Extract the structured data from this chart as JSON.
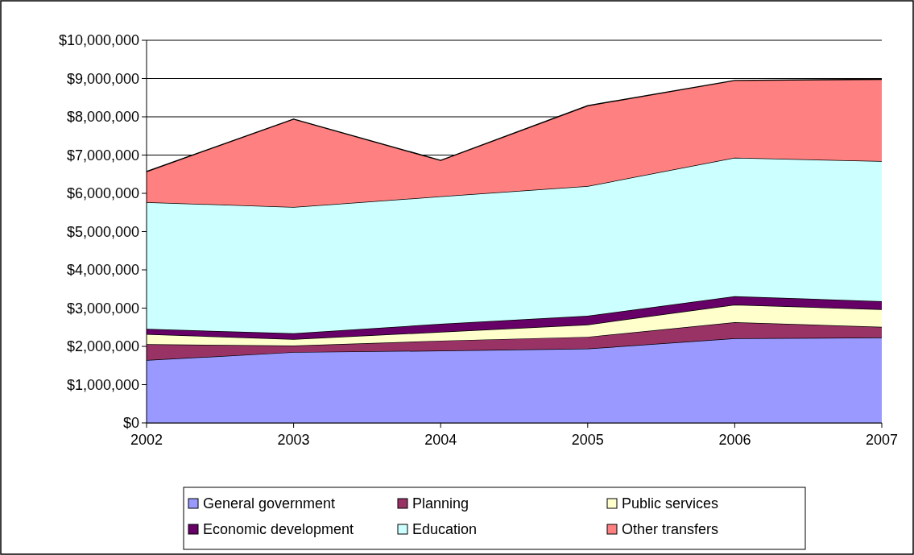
{
  "chart_data": {
    "type": "area",
    "stacked": true,
    "categories": [
      "2002",
      "2003",
      "2004",
      "2005",
      "2006",
      "2007"
    ],
    "series": [
      {
        "name": "General government",
        "color": "#9999ff",
        "values": [
          1640000,
          1850000,
          1890000,
          1940000,
          2210000,
          2230000
        ]
      },
      {
        "name": "Planning",
        "color": "#993366",
        "values": [
          420000,
          170000,
          260000,
          310000,
          420000,
          280000
        ]
      },
      {
        "name": "Public services",
        "color": "#ffffcc",
        "values": [
          260000,
          170000,
          230000,
          320000,
          460000,
          460000
        ]
      },
      {
        "name": "Economic development",
        "color": "#660066",
        "values": [
          140000,
          150000,
          210000,
          230000,
          220000,
          210000
        ]
      },
      {
        "name": "Education",
        "color": "#ccffff",
        "values": [
          3310000,
          3300000,
          3330000,
          3390000,
          3620000,
          3660000
        ]
      },
      {
        "name": "Other transfers",
        "color": "#ff8080",
        "values": [
          800000,
          2300000,
          940000,
          2100000,
          2020000,
          2140000
        ]
      }
    ],
    "ylim": [
      0,
      10000000
    ],
    "yticks": [
      {
        "value": 0,
        "label": "$0"
      },
      {
        "value": 1000000,
        "label": "$1,000,000"
      },
      {
        "value": 2000000,
        "label": "$2,000,000"
      },
      {
        "value": 3000000,
        "label": "$3,000,000"
      },
      {
        "value": 4000000,
        "label": "$4,000,000"
      },
      {
        "value": 5000000,
        "label": "$5,000,000"
      },
      {
        "value": 6000000,
        "label": "$6,000,000"
      },
      {
        "value": 7000000,
        "label": "$7,000,000"
      },
      {
        "value": 8000000,
        "label": "$8,000,000"
      },
      {
        "value": 9000000,
        "label": "$9,000,000"
      },
      {
        "value": 10000000,
        "label": "$10,000,000"
      }
    ],
    "grid": "y",
    "legend": "bottom"
  }
}
